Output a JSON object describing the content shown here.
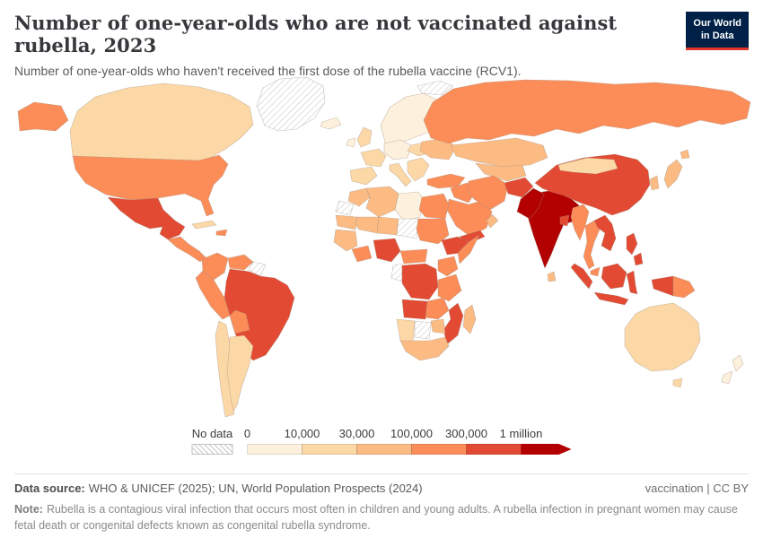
{
  "header": {
    "title": "Number of one-year-olds who are not vaccinated against rubella, 2023",
    "subtitle": "Number of one-year-olds who haven't received the first dose of the rubella vaccine (RCV1).",
    "logo_line1": "Our World",
    "logo_line2": "in Data"
  },
  "legend": {
    "no_data_label": "No data",
    "ticks": [
      "0",
      "10,000",
      "30,000",
      "100,000",
      "300,000",
      "1 million"
    ]
  },
  "footer": {
    "source_label": "Data source:",
    "source_text": "WHO & UNICEF (2025); UN, World Population Prospects (2024)",
    "license_text": "vaccination | CC BY",
    "note_label": "Note:",
    "note_text": "Rubella is a contagious viral infection that occurs most often in children and young adults. A rubella infection in pregnant women may cause fetal death or congenital defects known as congenital rubella syndrome."
  },
  "chart_data": {
    "type": "choropleth_world_map",
    "title": "Number of one-year-olds who are not vaccinated against rubella",
    "year": 2023,
    "metric": "one-year-olds not vaccinated against rubella (RCV1 first dose not received)",
    "legend_position": "bottom",
    "bin_edges": [
      "0",
      "10,000",
      "30,000",
      "100,000",
      "300,000",
      "1 million"
    ],
    "bin_colors": [
      "#fdf0dc",
      "#fdd8a7",
      "#fdbb84",
      "#fc8d59",
      "#e34a33",
      "#b30000"
    ],
    "no_data_style": "diagonal-hatch",
    "regions": {
      "canada": 1,
      "usa": 3,
      "greenland": null,
      "iceland": 0,
      "mexico": 4,
      "central-america": 3,
      "cuba": 1,
      "hispaniola": 3,
      "colombia": 3,
      "venezuela": 3,
      "guyanas": null,
      "brazil": 4,
      "peru": 3,
      "bolivia": 3,
      "chile": 1,
      "argentina": 1,
      "scandinavia": 0,
      "uk": 1,
      "ireland": 0,
      "france": 1,
      "iberia": 1,
      "central-europe": 0,
      "poland-baltics": 1,
      "italy": 1,
      "balkans": 1,
      "ukraine": 2,
      "russia": 3,
      "svalbard": null,
      "kazakhstan": 2,
      "central-asia": 2,
      "turkey": 3,
      "iraq-syria": 3,
      "saudi-arabia": 3,
      "yemen": 4,
      "oman": 2,
      "iran": 3,
      "afghanistan": 4,
      "pakistan": 5,
      "india": 5,
      "bangladesh": 4,
      "sri-lanka": 2,
      "china": 4,
      "mongolia": 1,
      "south-korea": 2,
      "japan": 2,
      "myanmar": 3,
      "thailand": 3,
      "vietnam": 4,
      "malaysia": 3,
      "philippines": 4,
      "indonesia": 4,
      "papua-new-guinea": 3,
      "australia": 1,
      "new-zealand": 0,
      "morocco": 2,
      "western-sahara": null,
      "mauritania": 2,
      "algeria": 2,
      "libya": 0,
      "egypt": 3,
      "mali": 2,
      "niger": 2,
      "chad": null,
      "sudan": 3,
      "ethiopia": 4,
      "somalia": 3,
      "senegal-guinea": 2,
      "ghana-ivory-coast": 3,
      "nigeria": 4,
      "cameroon-car": 3,
      "gabon-congo": null,
      "drc": 4,
      "kenya": 3,
      "tanzania": 3,
      "angola": 4,
      "zambia": 3,
      "mozambique": 4,
      "zimbabwe": 2,
      "botswana": null,
      "namibia": 1,
      "south-africa": 2,
      "madagascar": 2
    }
  }
}
